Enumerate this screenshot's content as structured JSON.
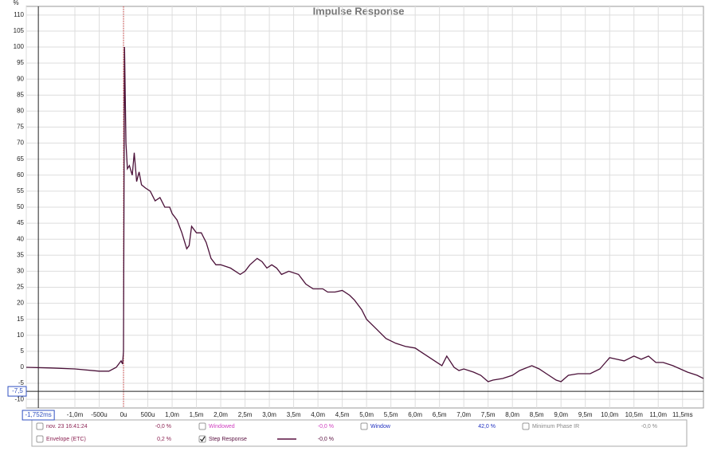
{
  "chart_data": {
    "type": "line",
    "title": "Impulse Response",
    "y_unit": "%",
    "x": [
      -2,
      -1.5,
      -1,
      -0.5,
      -0.3,
      -0.15,
      -0.05,
      -0.02,
      0,
      0.02,
      0.05,
      0.08,
      0.12,
      0.18,
      0.22,
      0.27,
      0.32,
      0.37,
      0.45,
      0.55,
      0.65,
      0.75,
      0.85,
      0.95,
      1.0,
      1.1,
      1.2,
      1.3,
      1.35,
      1.4,
      1.5,
      1.6,
      1.7,
      1.8,
      1.9,
      2.0,
      2.2,
      2.4,
      2.5,
      2.6,
      2.75,
      2.85,
      2.95,
      3.05,
      3.15,
      3.25,
      3.4,
      3.6,
      3.75,
      3.9,
      4.1,
      4.2,
      4.35,
      4.5,
      4.65,
      4.75,
      4.9,
      5.0,
      5.2,
      5.4,
      5.6,
      5.8,
      6.0,
      6.1,
      6.3,
      6.45,
      6.55,
      6.65,
      6.8,
      6.9,
      7.0,
      7.2,
      7.35,
      7.5,
      7.6,
      7.8,
      8.0,
      8.15,
      8.4,
      8.55,
      8.7,
      8.9,
      9.0,
      9.15,
      9.35,
      9.6,
      9.8,
      10.0,
      10.15,
      10.3,
      10.5,
      10.65,
      10.8,
      10.95,
      11.1,
      11.3,
      11.6,
      11.8,
      11.93
    ],
    "series": [
      {
        "color": "#4a1038",
        "values": [
          0,
          -0.2,
          -0.5,
          -1.2,
          -1.2,
          0,
          2,
          1,
          5,
          100,
          70,
          62,
          63,
          60,
          67,
          58,
          61,
          57,
          56,
          55,
          52,
          53,
          50,
          50,
          48,
          46,
          42,
          37,
          38,
          44,
          42,
          42,
          39,
          34,
          32,
          32,
          31,
          29,
          30,
          32,
          34,
          33,
          31,
          32,
          31,
          29,
          30,
          29,
          26,
          24.5,
          24.5,
          23.5,
          23.5,
          24,
          22.5,
          21,
          18,
          15,
          12,
          9,
          7.5,
          6.5,
          6,
          5,
          3,
          1.5,
          0.5,
          3.5,
          0,
          -1,
          -0.5,
          -1.5,
          -2.5,
          -4.5,
          -4,
          -3.5,
          -2.5,
          -1,
          0.5,
          -0.5,
          -2,
          -4,
          -4.5,
          -2.5,
          -2,
          -2,
          -0.5,
          3,
          2.5,
          2,
          3.5,
          2.5,
          3.5,
          1.5,
          1.5,
          0.5,
          -1.5,
          -2.5,
          -3.5
        ]
      }
    ],
    "xlim": [
      -2,
      11.93
    ],
    "ylim": [
      -12.7,
      112.7
    ],
    "xticks": [
      -2,
      {
        "value": -1,
        "label": "-1,0m"
      },
      {
        "value": -0.5,
        "label": "-500u"
      },
      {
        "value": 0,
        "label": "0u"
      },
      {
        "value": 0.5,
        "label": "500u"
      },
      {
        "value": 1,
        "label": "1,0m"
      },
      {
        "value": 1.5,
        "label": "1,5m"
      },
      {
        "value": 2,
        "label": "2,0m"
      },
      {
        "value": 2.5,
        "label": "2,5m"
      },
      {
        "value": 3,
        "label": "3,0m"
      },
      {
        "value": 3.5,
        "label": "3,5m"
      },
      {
        "value": 4,
        "label": "4,0m"
      },
      {
        "value": 4.5,
        "label": "4,5m"
      },
      {
        "value": 5,
        "label": "5,0m"
      },
      {
        "value": 5.5,
        "label": "5,5m"
      },
      {
        "value": 6,
        "label": "6,0m"
      },
      {
        "value": 6.5,
        "label": "6,5m"
      },
      {
        "value": 7,
        "label": "7,0m"
      },
      {
        "value": 7.5,
        "label": "7,5m"
      },
      {
        "value": 8,
        "label": "8,0m"
      },
      {
        "value": 8.5,
        "label": "8,5m"
      },
      {
        "value": 9,
        "label": "9,0m"
      },
      {
        "value": 9.5,
        "label": "9,5m"
      },
      {
        "value": 10,
        "label": "10,0m"
      },
      {
        "value": 10.5,
        "label": "10,5m"
      },
      {
        "value": 11,
        "label": "11,0m"
      },
      {
        "value": 11.5,
        "label": "11,5ms"
      }
    ],
    "yticks": [
      -10,
      -5,
      0,
      5,
      10,
      15,
      20,
      25,
      30,
      35,
      40,
      45,
      50,
      55,
      60,
      65,
      70,
      75,
      80,
      85,
      90,
      95,
      100,
      105,
      110
    ],
    "grid": true,
    "cursor": {
      "x": {
        "value": -1.752,
        "label": "-1,752ms"
      },
      "y": {
        "value": -7.5,
        "label": "-7,5"
      }
    }
  },
  "legend_panel": [
    [
      {
        "name": "nov. 23 16:41:24",
        "value": "-0,0 %",
        "checked": false,
        "color": "#8b2252"
      },
      {
        "name": "Windowed",
        "value": "-0,0 %",
        "checked": false,
        "color": "#d040c0"
      },
      {
        "name": "Window",
        "value": "42,0 %",
        "checked": false,
        "color": "#2030c0"
      },
      {
        "name": "Minimum Phase IR",
        "value": "-0,0 %",
        "checked": false,
        "color": "#888888"
      }
    ],
    [
      {
        "name": "Envelope (ETC)",
        "value": "0,2 %",
        "checked": false,
        "color": "#8b2252"
      },
      {
        "name": "Step Response",
        "value": "-0,0 %",
        "checked": true,
        "color": "#5a1040",
        "line": true
      }
    ]
  ]
}
